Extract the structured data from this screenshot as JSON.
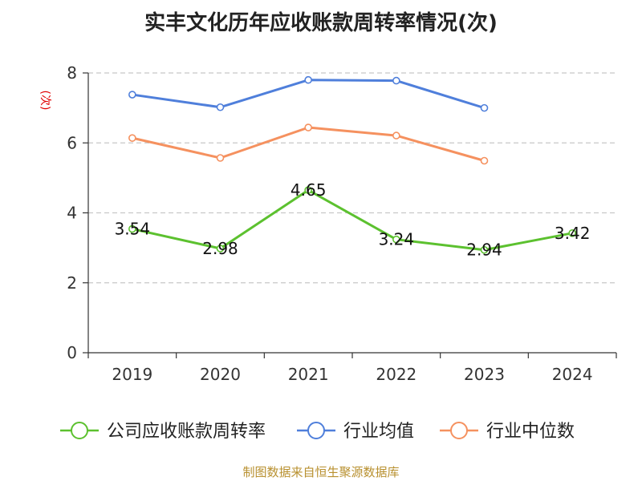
{
  "title": "实丰文化历年应收账款周转率情况(次)",
  "source": "制图数据来自恒生聚源数据库",
  "chart_data": {
    "type": "line",
    "ylabel": "(次)",
    "categories": [
      "2019",
      "2020",
      "2021",
      "2022",
      "2023",
      "2024"
    ],
    "ylim": [
      0,
      8
    ],
    "yticks": [
      0,
      2,
      4,
      6,
      8
    ],
    "grid": true,
    "legend_position": "bottom",
    "series": [
      {
        "name": "公司应收账款周转率",
        "color": "#5cc12f",
        "values": [
          3.54,
          2.98,
          4.65,
          3.24,
          2.94,
          3.42
        ],
        "labels": [
          "3.54",
          "2.98",
          "4.65",
          "3.24",
          "2.94",
          "3.42"
        ]
      },
      {
        "name": "行业均值",
        "color": "#4f7fdb",
        "values": [
          7.38,
          7.02,
          7.8,
          7.78,
          7.0,
          null
        ]
      },
      {
        "name": "行业中位数",
        "color": "#f5915f",
        "values": [
          6.14,
          5.57,
          6.44,
          6.21,
          5.49,
          null
        ]
      }
    ]
  }
}
